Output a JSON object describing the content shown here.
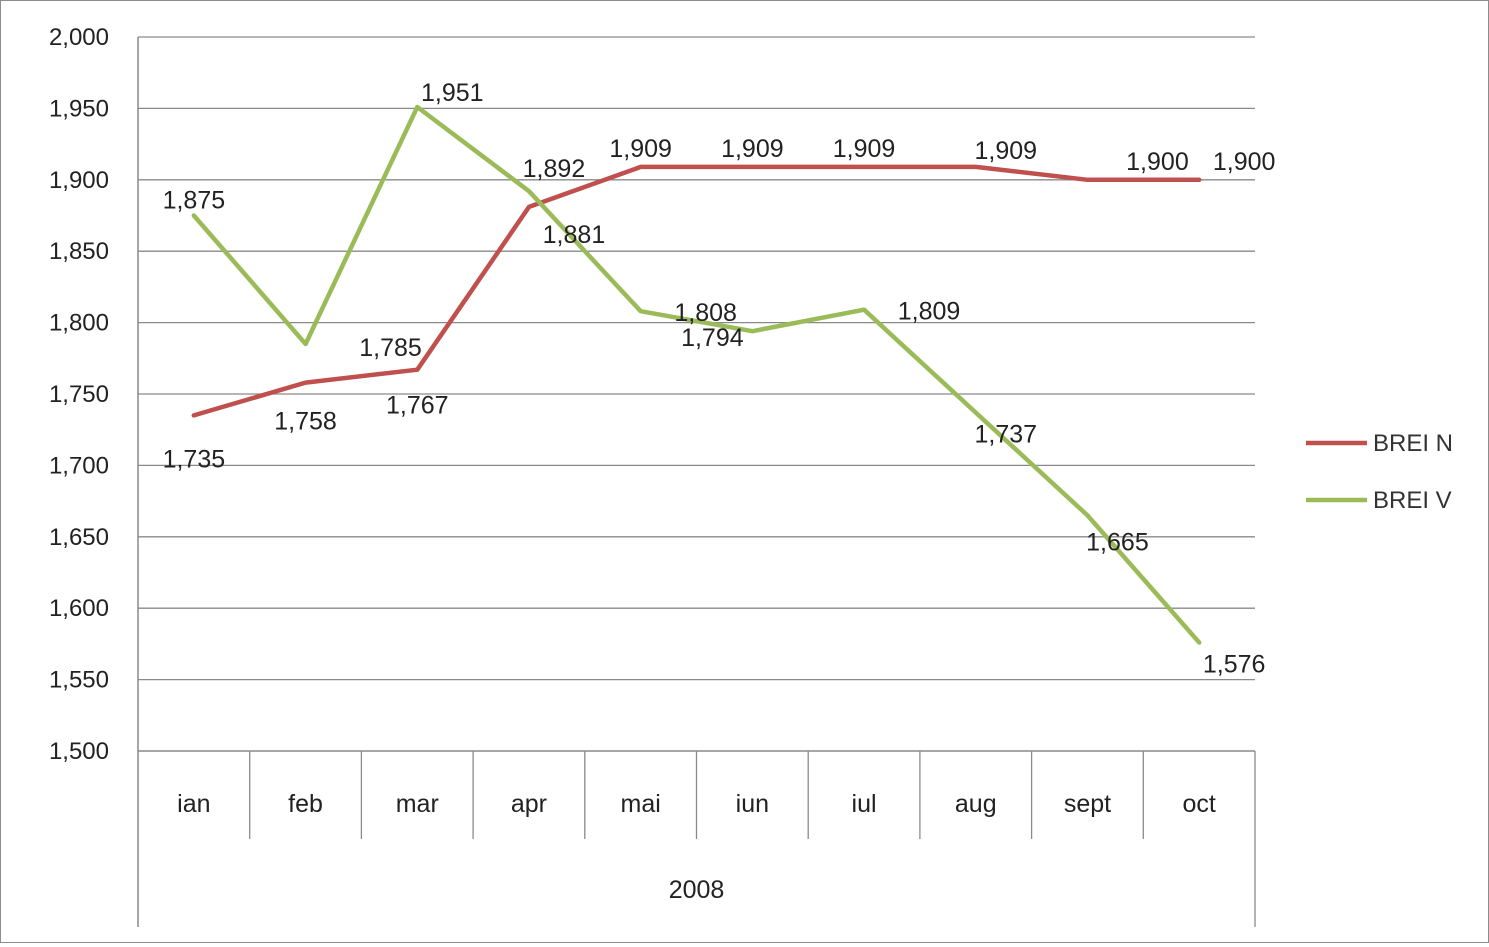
{
  "chart_data": {
    "type": "line",
    "categories": [
      "ian",
      "feb",
      "mar",
      "apr",
      "mai",
      "iun",
      "iul",
      "aug",
      "sept",
      "oct"
    ],
    "group_label": "2008",
    "ylim": [
      1.5,
      2.0
    ],
    "yticks": [
      "1,500",
      "1,550",
      "1,600",
      "1,650",
      "1,700",
      "1,750",
      "1,800",
      "1,850",
      "1,900",
      "1,950",
      "2,000"
    ],
    "grid": true,
    "legend_position": "right",
    "series": [
      {
        "name": "BREI N",
        "color": "#c0504d",
        "values": [
          1.735,
          1.758,
          1.767,
          1.881,
          1.909,
          1.909,
          1.909,
          1.909,
          1.9,
          1.9
        ],
        "labels": [
          "1,735",
          "1,758",
          "1,767",
          "1,881",
          "1,909",
          "1,909",
          "1,909",
          "1,909",
          "1,900",
          "1,900"
        ]
      },
      {
        "name": "BREI V",
        "color": "#9bbb59",
        "values": [
          1.875,
          1.785,
          1.951,
          1.892,
          1.808,
          1.794,
          1.809,
          1.737,
          1.665,
          1.576
        ],
        "labels": [
          "1,875",
          "1,785",
          "1,951",
          "1,892",
          "1,808",
          "1,794",
          "1,809",
          "1,737",
          "1,665",
          "1,576"
        ]
      }
    ]
  }
}
